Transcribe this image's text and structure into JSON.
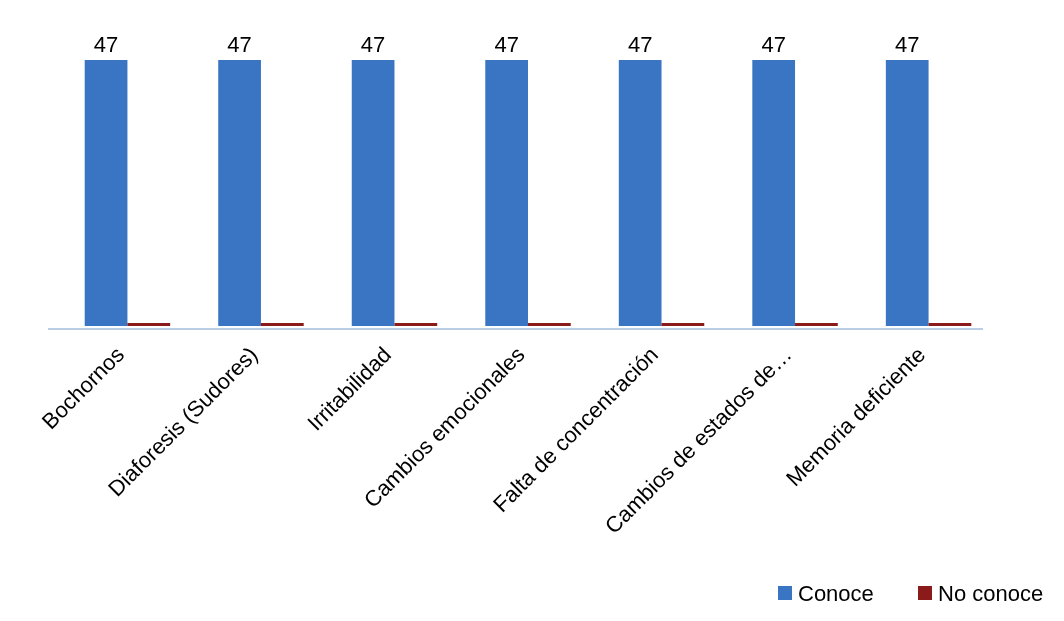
{
  "chart_data": {
    "type": "bar",
    "categories": [
      "Bochornos",
      "Diaforesis (Sudores)",
      "Irritabilidad",
      "Cambios emocionales",
      "Falta de concentración",
      "Cambios de estados de…",
      "Memoria deficiente"
    ],
    "series": [
      {
        "name": "Conoce",
        "color": "#3a75c4",
        "values": [
          47,
          47,
          47,
          47,
          47,
          47,
          47
        ],
        "value_labels": [
          "47",
          "47",
          "47",
          "47",
          "47",
          "47",
          "47"
        ]
      },
      {
        "name": "No conoce",
        "color": "#8b1a1a",
        "values": [
          0,
          0,
          0,
          0,
          0,
          0,
          0
        ],
        "value_labels": [
          null,
          null,
          null,
          null,
          null,
          null,
          null
        ]
      }
    ],
    "legend": "bottom right",
    "grid": false
  }
}
